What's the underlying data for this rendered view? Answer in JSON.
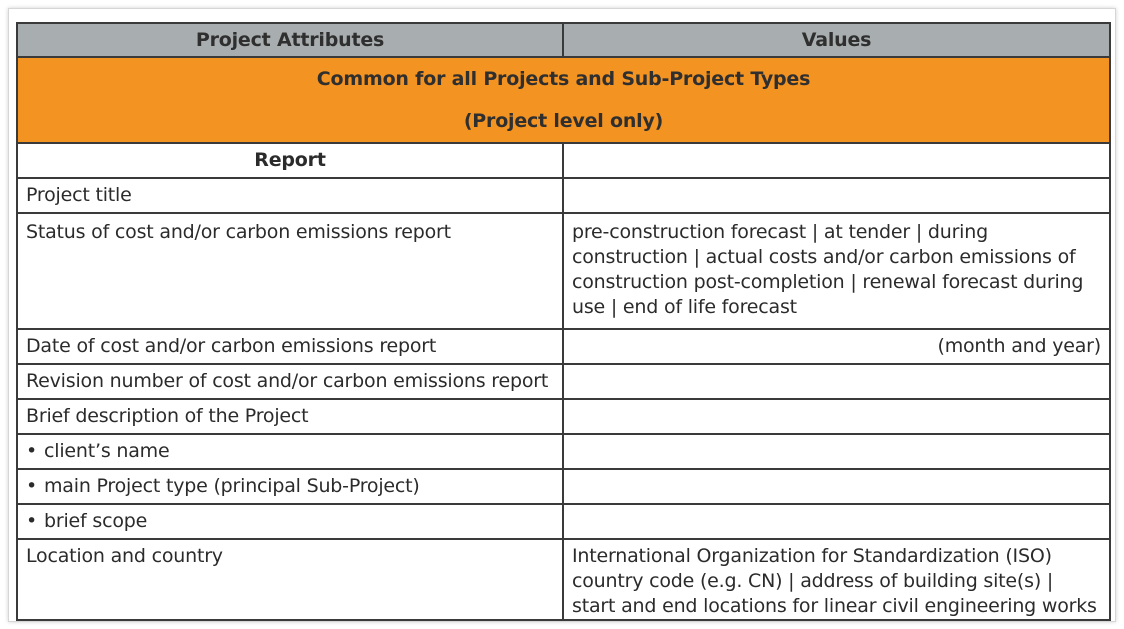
{
  "table": {
    "header": {
      "col1": "Project Attributes",
      "col2": "Values"
    },
    "band": {
      "line1": "Common for all Projects and Sub-Project Types",
      "line2": "(Project level only)"
    },
    "section_label": "Report",
    "rows": [
      {
        "attribute": "Project title",
        "value": ""
      },
      {
        "attribute": "Status of cost and/or carbon emissions report",
        "value": "pre-construction forecast | at tender | during construction | actual costs and/or carbon emissions of construction post-completion | renewal forecast during use | end of life forecast"
      },
      {
        "attribute": "Date of cost and/or carbon emissions report",
        "value": "(month and year)"
      },
      {
        "attribute": "Revision number of cost and/or carbon emissions report",
        "value": ""
      },
      {
        "attribute": "Brief description of the Project",
        "value": ""
      },
      {
        "attribute": "client’s name",
        "value": ""
      },
      {
        "attribute": "main Project type (principal Sub-Project)",
        "value": ""
      },
      {
        "attribute": "brief scope",
        "value": ""
      },
      {
        "attribute": "Location and country",
        "value": "International Organization for Standardization (ISO) country code (e.g. CN) | address of building site(s) | start and end locations for linear civil engineering works"
      }
    ],
    "bullet_symbol": "•"
  },
  "colors": {
    "header_bg": "#a8aeaf",
    "band_bg": "#f39322",
    "border": "#3a3a3a"
  }
}
